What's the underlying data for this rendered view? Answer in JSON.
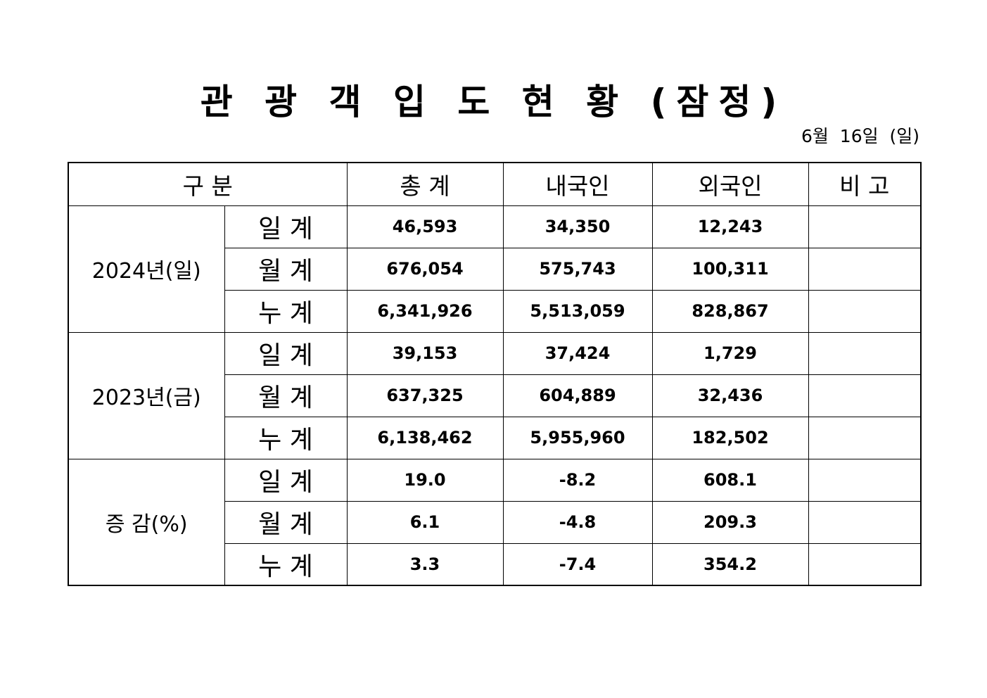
{
  "title": "관 광 객 입 도 현 황 (잠정)",
  "date": "6월  16일  (일)",
  "header": {
    "category": "구    분",
    "total": "총    계",
    "domestic": "내국인",
    "foreign": "외국인",
    "remarks": "비    고"
  },
  "groups": [
    {
      "label": "2024년(일)",
      "rows": [
        {
          "label": "일  계",
          "total": "46,593",
          "domestic": "34,350",
          "foreign": "12,243",
          "remarks": ""
        },
        {
          "label": "월  계",
          "total": "676,054",
          "domestic": "575,743",
          "foreign": "100,311",
          "remarks": ""
        },
        {
          "label": "누  계",
          "total": "6,341,926",
          "domestic": "5,513,059",
          "foreign": "828,867",
          "remarks": ""
        }
      ]
    },
    {
      "label": "2023년(금)",
      "rows": [
        {
          "label": "일  계",
          "total": "39,153",
          "domestic": "37,424",
          "foreign": "1,729",
          "remarks": ""
        },
        {
          "label": "월  계",
          "total": "637,325",
          "domestic": "604,889",
          "foreign": "32,436",
          "remarks": ""
        },
        {
          "label": "누  계",
          "total": "6,138,462",
          "domestic": "5,955,960",
          "foreign": "182,502",
          "remarks": ""
        }
      ]
    },
    {
      "label": "증  감(%)",
      "rows": [
        {
          "label": "일  계",
          "total": "19.0",
          "domestic": "-8.2",
          "foreign": "608.1",
          "remarks": ""
        },
        {
          "label": "월  계",
          "total": "6.1",
          "domestic": "-4.8",
          "foreign": "209.3",
          "remarks": ""
        },
        {
          "label": "누  계",
          "total": "3.3",
          "domestic": "-7.4",
          "foreign": "354.2",
          "remarks": ""
        }
      ]
    }
  ]
}
